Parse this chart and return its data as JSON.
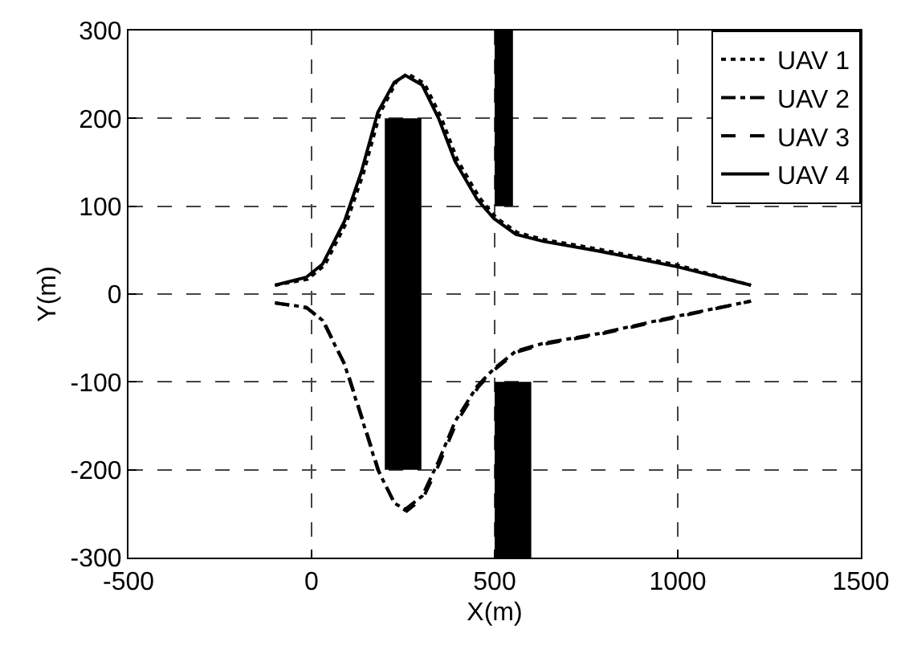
{
  "chart_data": {
    "type": "line",
    "xlabel": "X(m)",
    "ylabel": "Y(m)",
    "xlim": [
      -500,
      1500
    ],
    "xticks": [
      -500,
      0,
      500,
      1000,
      1500
    ],
    "ylim": [
      -300,
      300
    ],
    "yticks": [
      -300,
      -200,
      -100,
      0,
      100,
      200,
      300
    ],
    "grid": true,
    "legend": "top right",
    "marker": "none",
    "series": [
      {
        "name": "UAV 1",
        "color": "#000000",
        "line_style": "dotted",
        "x": [
          -100,
          -10,
          36,
          96,
          142,
          187,
          232,
          262,
          308,
          353,
          398,
          458,
          504,
          562,
          636,
          786,
          1000,
          1200
        ],
        "values": [
          10,
          17,
          33,
          82,
          138,
          206,
          242,
          251,
          240,
          202,
          153,
          110,
          87,
          70,
          62,
          51,
          33,
          10
        ]
      },
      {
        "name": "UAV 2",
        "color": "#000000",
        "line_style": "dashdot",
        "x": [
          -100,
          -15,
          30,
          90,
          136,
          181,
          226,
          256,
          302,
          347,
          392,
          452,
          498,
          558,
          633,
          784,
          1000,
          1200
        ],
        "values": [
          -10,
          -15,
          -30,
          -80,
          -140,
          -200,
          -238,
          -245,
          -230,
          -190,
          -145,
          -105,
          -85,
          -65,
          -56,
          -45,
          -25,
          -8
        ]
      },
      {
        "name": "UAV 3",
        "color": "#000000",
        "line_style": "dashed",
        "x": [
          -100,
          -12,
          33,
          93,
          139,
          184,
          229,
          260,
          305,
          350,
          395,
          455,
          500,
          560,
          635,
          785,
          1000,
          1200
        ],
        "values": [
          -10,
          -16,
          -31,
          -82,
          -142,
          -202,
          -240,
          -247,
          -232,
          -192,
          -147,
          -106,
          -86,
          -66,
          -57,
          -46,
          -26,
          -8
        ]
      },
      {
        "name": "UAV 4",
        "color": "#000000",
        "line_style": "solid",
        "x": [
          -100,
          -15,
          30,
          90,
          136,
          181,
          226,
          256,
          302,
          347,
          392,
          452,
          498,
          558,
          633,
          784,
          1000,
          1200
        ],
        "values": [
          10,
          19,
          34,
          83,
          139,
          207,
          241,
          249,
          238,
          200,
          151,
          108,
          86,
          68,
          60,
          49,
          31,
          10
        ]
      },
      {
        "type": "area",
        "color": "#000000",
        "x": [
          200,
          200,
          300,
          300
        ],
        "values": [
          -200,
          200,
          200,
          -200
        ]
      },
      {
        "type": "area",
        "color": "#000000",
        "x": [
          500,
          500,
          550,
          550
        ],
        "values": [
          100,
          300,
          300,
          100
        ]
      },
      {
        "type": "area",
        "color": "#000000",
        "x": [
          500,
          500,
          600,
          600
        ],
        "values": [
          -300,
          -100,
          -100,
          -300
        ]
      }
    ]
  }
}
